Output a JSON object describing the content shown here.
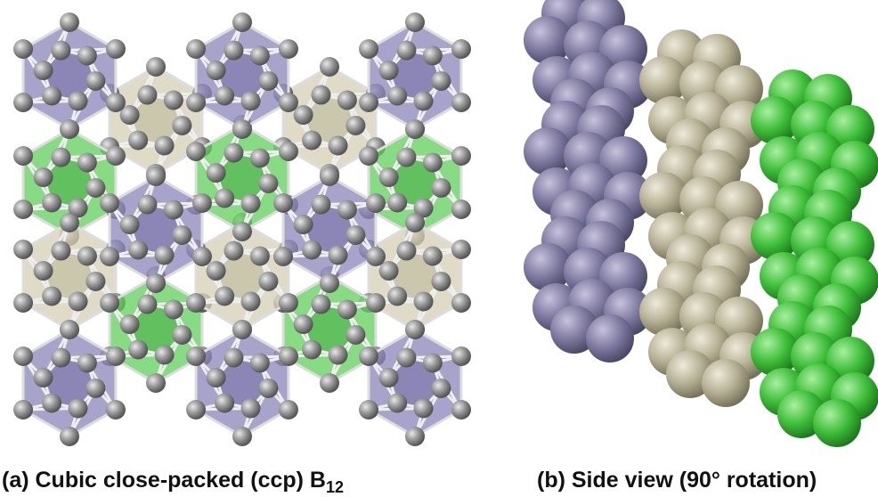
{
  "caption_a": {
    "text": "(a) Cubic close-packed (ccp) B",
    "subscript": "12"
  },
  "caption_b": {
    "text": "(b) Side view (90° rotation)"
  }
}
